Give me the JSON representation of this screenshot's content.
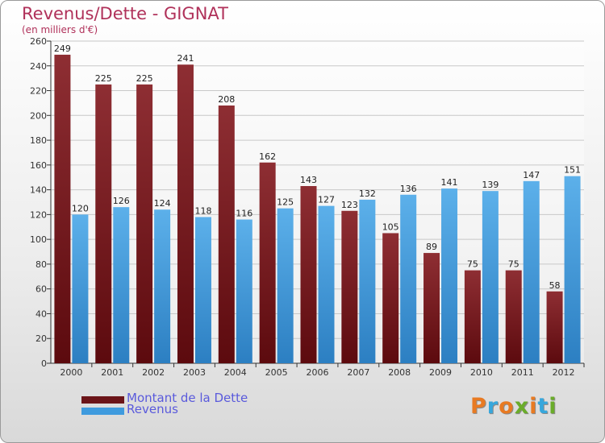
{
  "title": "Revenus/Dette - GIGNAT",
  "subtitle": "(en milliers d'€)",
  "logo": {
    "text": "Proxiti",
    "letter_colors": [
      "#e87a22",
      "#37a7dc",
      "#e87a22",
      "#6aac2a",
      "#e87a22",
      "#37a7dc",
      "#6aac2a"
    ]
  },
  "colors": {
    "dette": "#7a1f24",
    "revenus": "#3f9bde",
    "axis": "#333333",
    "grid": "#c8c8c8"
  },
  "chart_data": {
    "type": "bar",
    "title": "Revenus/Dette - GIGNAT",
    "subtitle": "(en milliers d'€)",
    "categories": [
      "2000",
      "2001",
      "2002",
      "2003",
      "2004",
      "2005",
      "2006",
      "2007",
      "2008",
      "2009",
      "2010",
      "2011",
      "2012"
    ],
    "series": [
      {
        "name": "Montant de la Dette",
        "values": [
          249,
          225,
          225,
          241,
          208,
          162,
          143,
          123,
          105,
          89,
          75,
          75,
          58
        ]
      },
      {
        "name": "Revenus",
        "values": [
          120,
          126,
          124,
          118,
          116,
          125,
          127,
          132,
          136,
          141,
          139,
          147,
          151
        ]
      }
    ],
    "ylim": [
      0,
      260
    ],
    "yticks": [
      0,
      20,
      40,
      60,
      80,
      100,
      120,
      140,
      160,
      180,
      200,
      220,
      240,
      260
    ],
    "grid": true,
    "legend_position": "bottom-left"
  }
}
